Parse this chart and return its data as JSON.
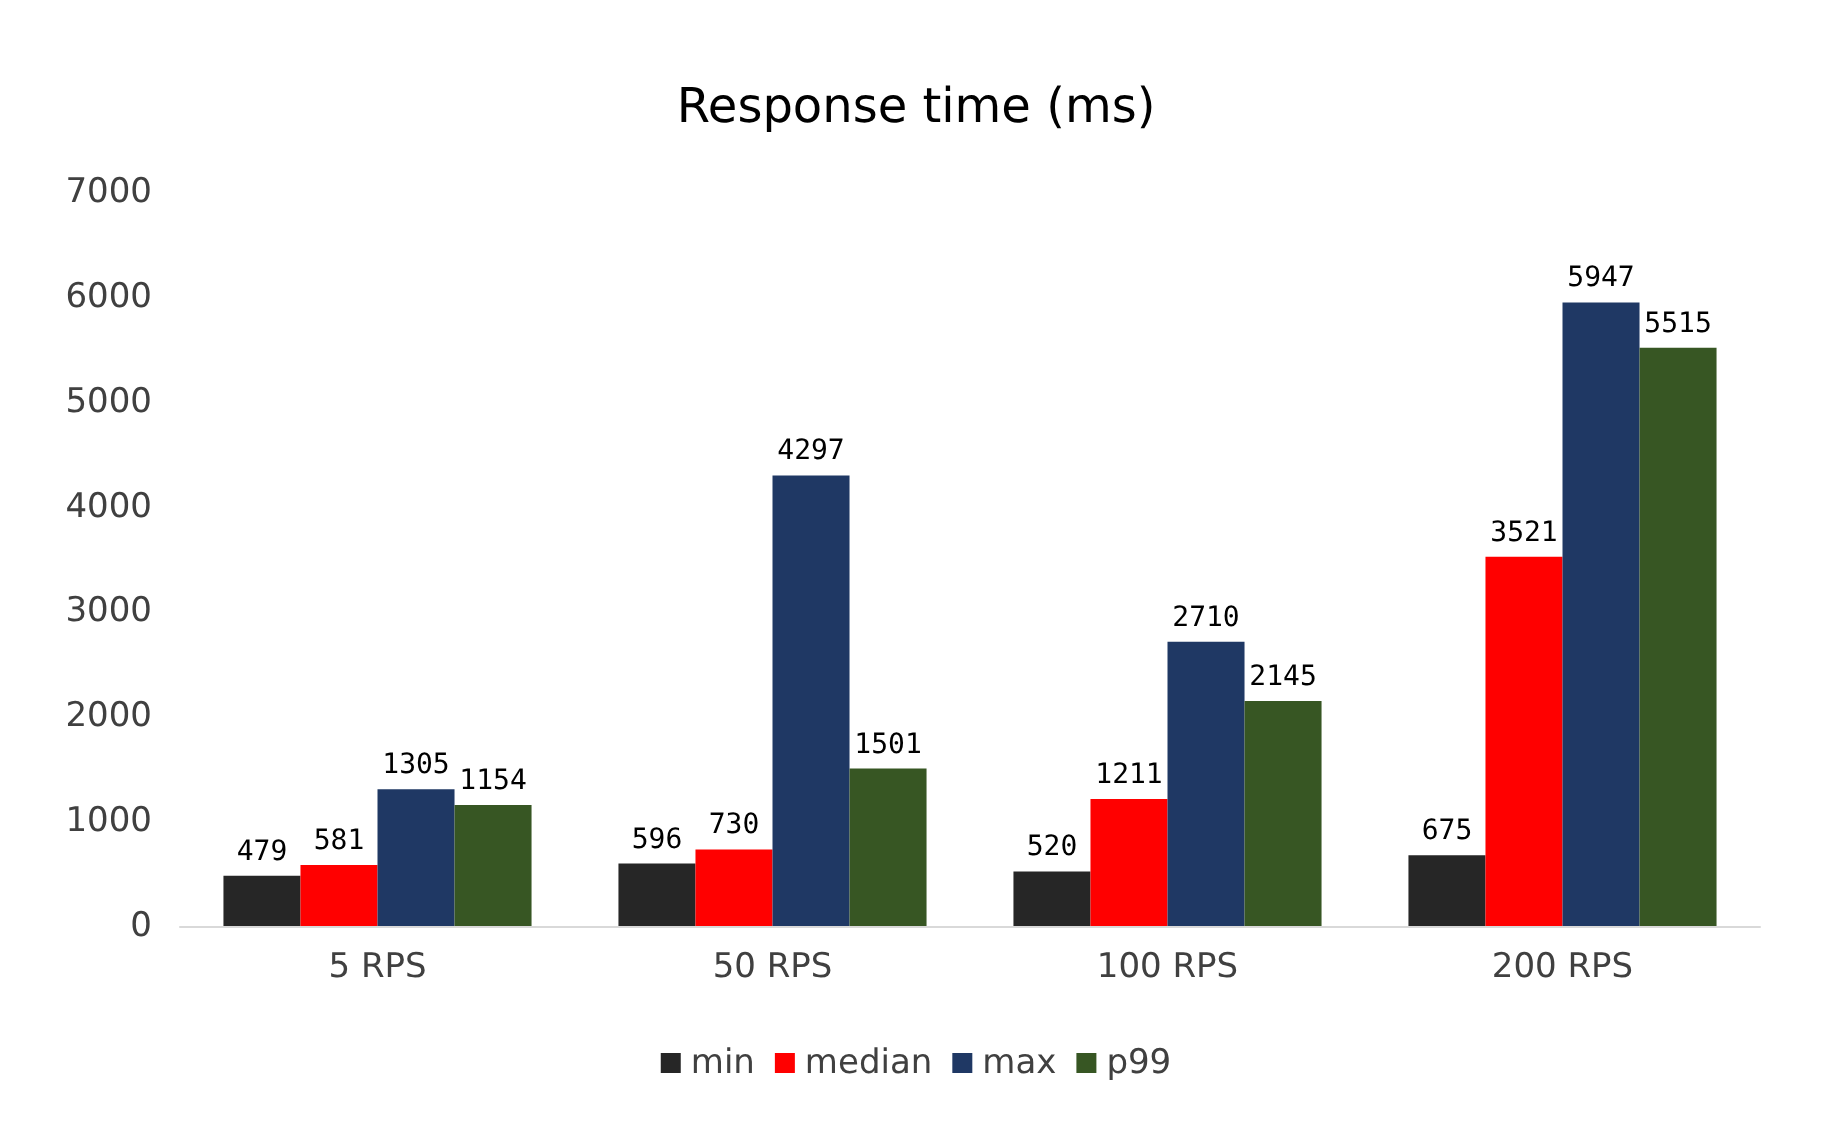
{
  "chart_data": {
    "type": "bar",
    "title": "Response time (ms)",
    "categories": [
      "5 RPS",
      "50 RPS",
      "100 RPS",
      "200 RPS"
    ],
    "series": [
      {
        "name": "min",
        "color": "#262626",
        "values": [
          479,
          596,
          520,
          675
        ]
      },
      {
        "name": "median",
        "color": "#ff0000",
        "values": [
          581,
          730,
          1211,
          3521
        ]
      },
      {
        "name": "max",
        "color": "#1f3864",
        "values": [
          1305,
          4297,
          2710,
          5947
        ]
      },
      {
        "name": "p99",
        "color": "#375623",
        "values": [
          1154,
          1501,
          2145,
          5515
        ]
      }
    ],
    "ylim": [
      0,
      7000
    ],
    "yticks": [
      0,
      1000,
      2000,
      3000,
      4000,
      5000,
      6000,
      7000
    ],
    "grid": false,
    "legend": "bottom",
    "data_labels": true
  }
}
